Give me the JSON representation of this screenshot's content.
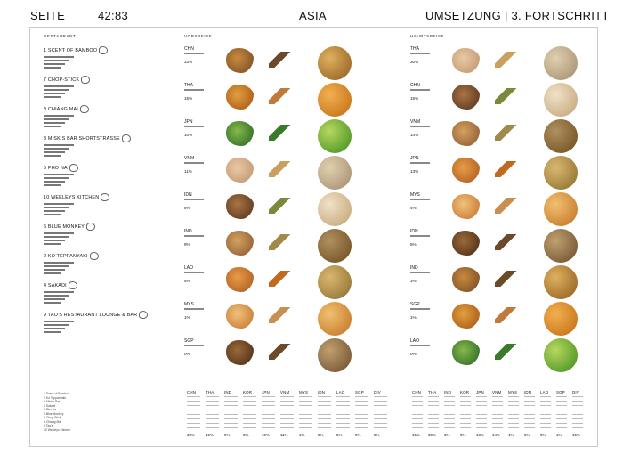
{
  "header": {
    "seite": "SEITE",
    "page_no": "42:83",
    "title": "ASIA",
    "right": "UMSETZUNG | 3. FORTSCHRITT"
  },
  "sections": {
    "restaurant": "RESTAURANT",
    "vorspeise": "VORSPEISE",
    "hauptspeise": "HAUPTSPEISE"
  },
  "restaurants": [
    {
      "name": "1 SCENT OF BAMBOO"
    },
    {
      "name": "7 CHOP-STICK"
    },
    {
      "name": "8 CHIANG MAI"
    },
    {
      "name": "3 MISKIS BAR SHORTSTRASSE"
    },
    {
      "name": "5 PHO NA"
    },
    {
      "name": "10 WEELEYS KITCHEN"
    },
    {
      "name": "6 BLUE MONKEY"
    },
    {
      "name": "2 KO TEPPANYAKI"
    },
    {
      "name": "4 SAKADI"
    },
    {
      "name": "9 TAO'S RESTAURANT LOUNGE & BAR"
    }
  ],
  "vorspeise": [
    {
      "code": "CHN",
      "pct": "33%"
    },
    {
      "code": "THA",
      "pct": "15%"
    },
    {
      "code": "JPN",
      "pct": "10%"
    },
    {
      "code": "VNM",
      "pct": "11%"
    },
    {
      "code": "IDN",
      "pct": "8%"
    },
    {
      "code": "IND",
      "pct": "9%"
    },
    {
      "code": "LAO",
      "pct": "5%"
    },
    {
      "code": "MYS",
      "pct": "1%"
    },
    {
      "code": "SGP",
      "pct": "0%"
    }
  ],
  "hauptspeise": [
    {
      "code": "THA",
      "pct": "30%"
    },
    {
      "code": "CHN",
      "pct": "15%"
    },
    {
      "code": "VNM",
      "pct": "14%"
    },
    {
      "code": "JPN",
      "pct": "13%"
    },
    {
      "code": "MYS",
      "pct": "4%"
    },
    {
      "code": "IDN",
      "pct": "5%"
    },
    {
      "code": "IND",
      "pct": "3%"
    },
    {
      "code": "SGP",
      "pct": "1%"
    },
    {
      "code": "LAO",
      "pct": "0%"
    }
  ],
  "table_columns": [
    "CHN",
    "THA",
    "IND",
    "KOR",
    "JPN",
    "VNM",
    "MYS",
    "IDN",
    "LAO",
    "SGP",
    "DIV"
  ],
  "table_left_totals": [
    "33%",
    "15%",
    "9%",
    "0%",
    "10%",
    "11%",
    "1%",
    "8%",
    "5%",
    "0%",
    "8%"
  ],
  "table_right_totals": [
    "15%",
    "30%",
    "3%",
    "0%",
    "13%",
    "14%",
    "4%",
    "5%",
    "0%",
    "1%",
    "15%"
  ],
  "legend": [
    "1  Scent of Bamboo",
    "2  Ko Teppanyaki",
    "3  Miskis Bar",
    "4  Sakadi",
    "5  Pho Na",
    "6  Blue Monkey",
    "7  Chop-Stick",
    "8  Chiang Mai",
    "9  Tao's",
    "10 Weeleys Kitchen"
  ],
  "colors": {
    "border": "#c9c9c9",
    "text": "#111111"
  }
}
